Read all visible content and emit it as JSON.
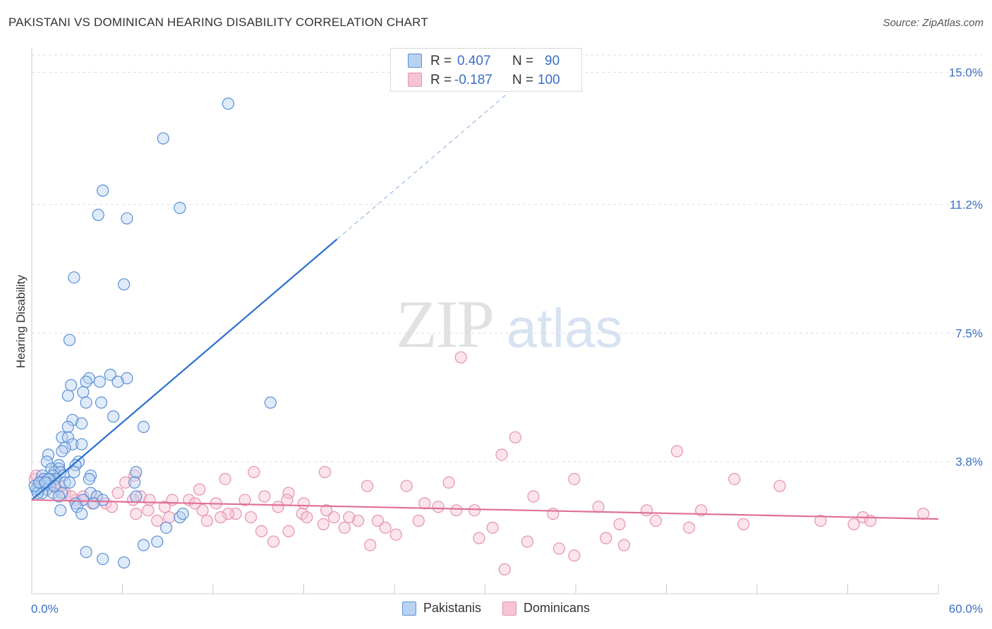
{
  "title": "PAKISTANI VS DOMINICAN HEARING DISABILITY CORRELATION CHART",
  "source": "Source: ZipAtlas.com",
  "watermark": {
    "zip": "ZIP",
    "atlas": "atlas"
  },
  "colors": {
    "pakistani_fill": "#b8d3f2",
    "pakistani_stroke": "#5b8fd6",
    "pakistani_line": "#2a6fcf",
    "dominican_fill": "#f7c4d3",
    "dominican_stroke": "#e592ae",
    "dominican_line": "#e07098",
    "axis_label": "#3a6fc4",
    "grid": "#dddddd"
  },
  "legend_box": {
    "rows": [
      {
        "r_label": "R =",
        "r_value": "0.407",
        "n_label": "N =",
        "n_value": "90"
      },
      {
        "r_label": "R =",
        "r_value": "-0.187",
        "n_label": "N =",
        "n_value": "100"
      }
    ]
  },
  "legend_bottom": [
    "Pakistanis",
    "Dominicans"
  ],
  "chart_data": {
    "type": "scatter",
    "title": "PAKISTANI VS DOMINICAN HEARING DISABILITY CORRELATION CHART",
    "xlabel": "",
    "ylabel": "Hearing Disability",
    "xlim": [
      0,
      60
    ],
    "ylim": [
      0,
      15.5
    ],
    "x_tick_labels": [
      "0.0%",
      "60.0%"
    ],
    "y_tick_labels": [
      "3.8%",
      "7.5%",
      "11.2%",
      "15.0%"
    ],
    "y_ticks": [
      3.8,
      7.5,
      11.2,
      15.0
    ],
    "legend_position": "top-center",
    "series": [
      {
        "name": "Pakistanis",
        "R": 0.407,
        "N": 90,
        "trend": {
          "x0": 0,
          "y0": 2.7,
          "x1": 20.2,
          "y1": 10.2,
          "dashed_to_x": 31.5,
          "dashed_to_y": 14.4
        },
        "points": [
          [
            13,
            14.1
          ],
          [
            8.7,
            13.1
          ],
          [
            4.7,
            11.6
          ],
          [
            9.8,
            11.1
          ],
          [
            4.4,
            10.9
          ],
          [
            6.3,
            10.8
          ],
          [
            2.8,
            9.1
          ],
          [
            6.1,
            8.9
          ],
          [
            2.5,
            7.3
          ],
          [
            5.2,
            6.3
          ],
          [
            3.8,
            6.2
          ],
          [
            6.3,
            6.2
          ],
          [
            3.6,
            6.1
          ],
          [
            4.5,
            6.1
          ],
          [
            5.7,
            6.1
          ],
          [
            2.6,
            6.0
          ],
          [
            3.4,
            5.8
          ],
          [
            2.4,
            5.7
          ],
          [
            3.6,
            5.5
          ],
          [
            4.6,
            5.5
          ],
          [
            15.8,
            5.5
          ],
          [
            5.4,
            5.1
          ],
          [
            2.7,
            5.0
          ],
          [
            3.3,
            4.9
          ],
          [
            2.4,
            4.8
          ],
          [
            7.4,
            4.8
          ],
          [
            2.0,
            4.5
          ],
          [
            2.4,
            4.5
          ],
          [
            2.7,
            4.3
          ],
          [
            3.3,
            4.3
          ],
          [
            2.2,
            4.2
          ],
          [
            2.0,
            4.1
          ],
          [
            1.1,
            4.0
          ],
          [
            3.1,
            3.8
          ],
          [
            1.0,
            3.8
          ],
          [
            1.8,
            3.7
          ],
          [
            2.9,
            3.7
          ],
          [
            1.3,
            3.6
          ],
          [
            1.8,
            3.6
          ],
          [
            1.5,
            3.5
          ],
          [
            1.9,
            3.5
          ],
          [
            2.8,
            3.5
          ],
          [
            6.9,
            3.5
          ],
          [
            1.4,
            3.4
          ],
          [
            2.1,
            3.4
          ],
          [
            0.7,
            3.4
          ],
          [
            1.6,
            3.3
          ],
          [
            3.9,
            3.4
          ],
          [
            0.8,
            3.3
          ],
          [
            1.2,
            3.3
          ],
          [
            0.6,
            3.2
          ],
          [
            1.0,
            3.2
          ],
          [
            2.2,
            3.2
          ],
          [
            3.8,
            3.3
          ],
          [
            0.4,
            3.1
          ],
          [
            0.7,
            3.1
          ],
          [
            1.2,
            3.1
          ],
          [
            2.5,
            3.2
          ],
          [
            6.8,
            3.2
          ],
          [
            0.5,
            3.0
          ],
          [
            1.0,
            3.0
          ],
          [
            0.3,
            3.0
          ],
          [
            0.7,
            2.9
          ],
          [
            1.4,
            2.9
          ],
          [
            2.0,
            2.9
          ],
          [
            3.9,
            2.9
          ],
          [
            6.9,
            2.8
          ],
          [
            0.4,
            2.9
          ],
          [
            1.8,
            2.8
          ],
          [
            4.3,
            2.8
          ],
          [
            0.2,
            3.1
          ],
          [
            3.4,
            2.7
          ],
          [
            4.7,
            2.7
          ],
          [
            2.9,
            2.6
          ],
          [
            3.0,
            2.5
          ],
          [
            4.1,
            2.6
          ],
          [
            0.5,
            3.2
          ],
          [
            1.9,
            2.4
          ],
          [
            3.3,
            2.3
          ],
          [
            9.8,
            2.2
          ],
          [
            10.0,
            2.3
          ],
          [
            8.9,
            1.9
          ],
          [
            8.3,
            1.5
          ],
          [
            7.4,
            1.4
          ],
          [
            3.6,
            1.2
          ],
          [
            4.7,
            1.0
          ],
          [
            6.1,
            0.9
          ],
          [
            1.1,
            3.3
          ],
          [
            0.9,
            3.2
          ],
          [
            1.5,
            3.1
          ]
        ]
      },
      {
        "name": "Dominicans",
        "R": -0.187,
        "N": 100,
        "trend": {
          "x0": 0,
          "y0": 2.7,
          "x1": 60,
          "y1": 2.15
        },
        "points": [
          [
            28.4,
            6.8
          ],
          [
            32.0,
            4.5
          ],
          [
            31.1,
            4.0
          ],
          [
            42.7,
            4.1
          ],
          [
            14.7,
            3.5
          ],
          [
            19.4,
            3.5
          ],
          [
            6.8,
            3.4
          ],
          [
            12.8,
            3.3
          ],
          [
            27.6,
            3.2
          ],
          [
            22.2,
            3.1
          ],
          [
            24.8,
            3.1
          ],
          [
            35.9,
            3.3
          ],
          [
            46.5,
            3.3
          ],
          [
            49.5,
            3.1
          ],
          [
            6.2,
            3.2
          ],
          [
            11.1,
            3.0
          ],
          [
            15.4,
            2.8
          ],
          [
            17.0,
            2.9
          ],
          [
            5.7,
            2.9
          ],
          [
            3.4,
            2.8
          ],
          [
            7.2,
            2.8
          ],
          [
            9.3,
            2.7
          ],
          [
            10.4,
            2.7
          ],
          [
            14.1,
            2.7
          ],
          [
            16.9,
            2.7
          ],
          [
            33.2,
            2.8
          ],
          [
            2.9,
            2.7
          ],
          [
            4.9,
            2.6
          ],
          [
            6.7,
            2.7
          ],
          [
            8.8,
            2.5
          ],
          [
            12.2,
            2.6
          ],
          [
            18.0,
            2.6
          ],
          [
            26.9,
            2.5
          ],
          [
            28.1,
            2.4
          ],
          [
            29.3,
            2.4
          ],
          [
            11.3,
            2.4
          ],
          [
            13.5,
            2.3
          ],
          [
            7.7,
            2.4
          ],
          [
            17.9,
            2.3
          ],
          [
            20.0,
            2.2
          ],
          [
            34.5,
            2.3
          ],
          [
            40.7,
            2.4
          ],
          [
            44.3,
            2.4
          ],
          [
            6.9,
            2.3
          ],
          [
            14.5,
            2.2
          ],
          [
            9.1,
            2.2
          ],
          [
            11.6,
            2.1
          ],
          [
            18.2,
            2.2
          ],
          [
            22.9,
            2.1
          ],
          [
            25.6,
            2.1
          ],
          [
            41.3,
            2.1
          ],
          [
            38.9,
            2.0
          ],
          [
            47.1,
            2.0
          ],
          [
            52.2,
            2.1
          ],
          [
            54.4,
            2.0
          ],
          [
            55.0,
            2.2
          ],
          [
            55.5,
            2.1
          ],
          [
            59.0,
            2.3
          ],
          [
            21.6,
            2.1
          ],
          [
            19.3,
            2.0
          ],
          [
            20.7,
            1.9
          ],
          [
            23.4,
            1.9
          ],
          [
            30.5,
            1.9
          ],
          [
            43.5,
            1.9
          ],
          [
            15.2,
            1.8
          ],
          [
            17.0,
            1.8
          ],
          [
            24.1,
            1.7
          ],
          [
            29.6,
            1.6
          ],
          [
            38.0,
            1.6
          ],
          [
            16.0,
            1.5
          ],
          [
            22.4,
            1.4
          ],
          [
            32.8,
            1.5
          ],
          [
            39.2,
            1.4
          ],
          [
            34.9,
            1.3
          ],
          [
            35.9,
            1.1
          ],
          [
            31.3,
            0.7
          ],
          [
            2.2,
            2.9
          ],
          [
            4.3,
            2.8
          ],
          [
            5.3,
            2.5
          ],
          [
            1.7,
            3.0
          ],
          [
            1.3,
            3.1
          ],
          [
            0.6,
            3.2
          ],
          [
            0.2,
            3.3
          ],
          [
            1.1,
            3.2
          ],
          [
            0.3,
            3.4
          ],
          [
            2.6,
            2.8
          ],
          [
            4.0,
            2.6
          ],
          [
            3.4,
            2.7
          ],
          [
            7.8,
            2.7
          ],
          [
            10.8,
            2.6
          ],
          [
            13.0,
            2.3
          ],
          [
            16.3,
            2.5
          ],
          [
            19.5,
            2.4
          ],
          [
            21.0,
            2.2
          ],
          [
            26.0,
            2.6
          ],
          [
            8.3,
            2.1
          ],
          [
            12.5,
            2.2
          ],
          [
            1.9,
            3.1
          ],
          [
            0.8,
            3.3
          ],
          [
            37.5,
            2.5
          ]
        ]
      }
    ]
  }
}
